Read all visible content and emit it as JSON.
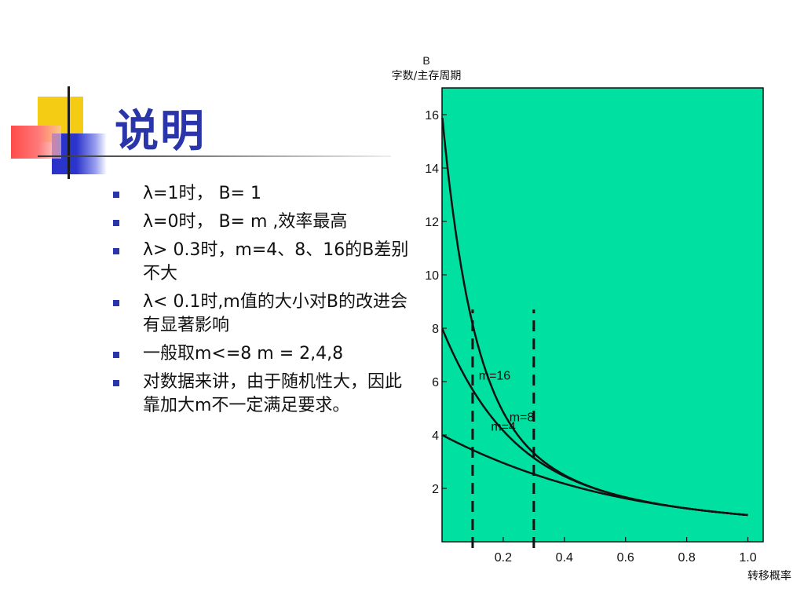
{
  "slide": {
    "title": "说明",
    "bullets": [
      "λ=1时， B= 1",
      "λ=0时， B= m ,效率最高",
      "λ> 0.3时，m=4、8、16的B差别不大",
      "λ< 0.1时,m值的大小对B的改进会有显著影响",
      "一般取m<=8 m = 2,4,8",
      "对数据来讲，由于随机性大，因此靠加大m不一定满足要求。"
    ],
    "colors": {
      "title": "#2b35aa",
      "bullet": "#2b35aa",
      "plot_bg": "#00e0a0"
    }
  },
  "chart_data": {
    "type": "line",
    "ylabel_top": "B",
    "ylabel_bottom": "字数/主存周期",
    "xlabel": "转移概率",
    "xlim": [
      0,
      1.05
    ],
    "ylim": [
      0,
      17
    ],
    "xticks": [
      0.2,
      0.4,
      0.6,
      0.8,
      1.0
    ],
    "xtick_labels": [
      "0.2",
      "0.4",
      "0.6",
      "0.8",
      "1.0"
    ],
    "yticks": [
      2,
      4,
      6,
      8,
      10,
      12,
      14,
      16
    ],
    "ytick_labels": [
      "2",
      "4",
      "6",
      "8",
      "10",
      "12",
      "14",
      "16"
    ],
    "series": [
      {
        "name": "m=16",
        "m": 16
      },
      {
        "name": "m=8",
        "m": 8
      },
      {
        "name": "m=4",
        "m": 4
      }
    ],
    "x": [
      0.0,
      0.05,
      0.1,
      0.2,
      0.3,
      0.4,
      0.5,
      0.6,
      0.7,
      0.8,
      0.9,
      1.0
    ],
    "reference_lines_x": [
      0.1,
      0.3
    ]
  }
}
